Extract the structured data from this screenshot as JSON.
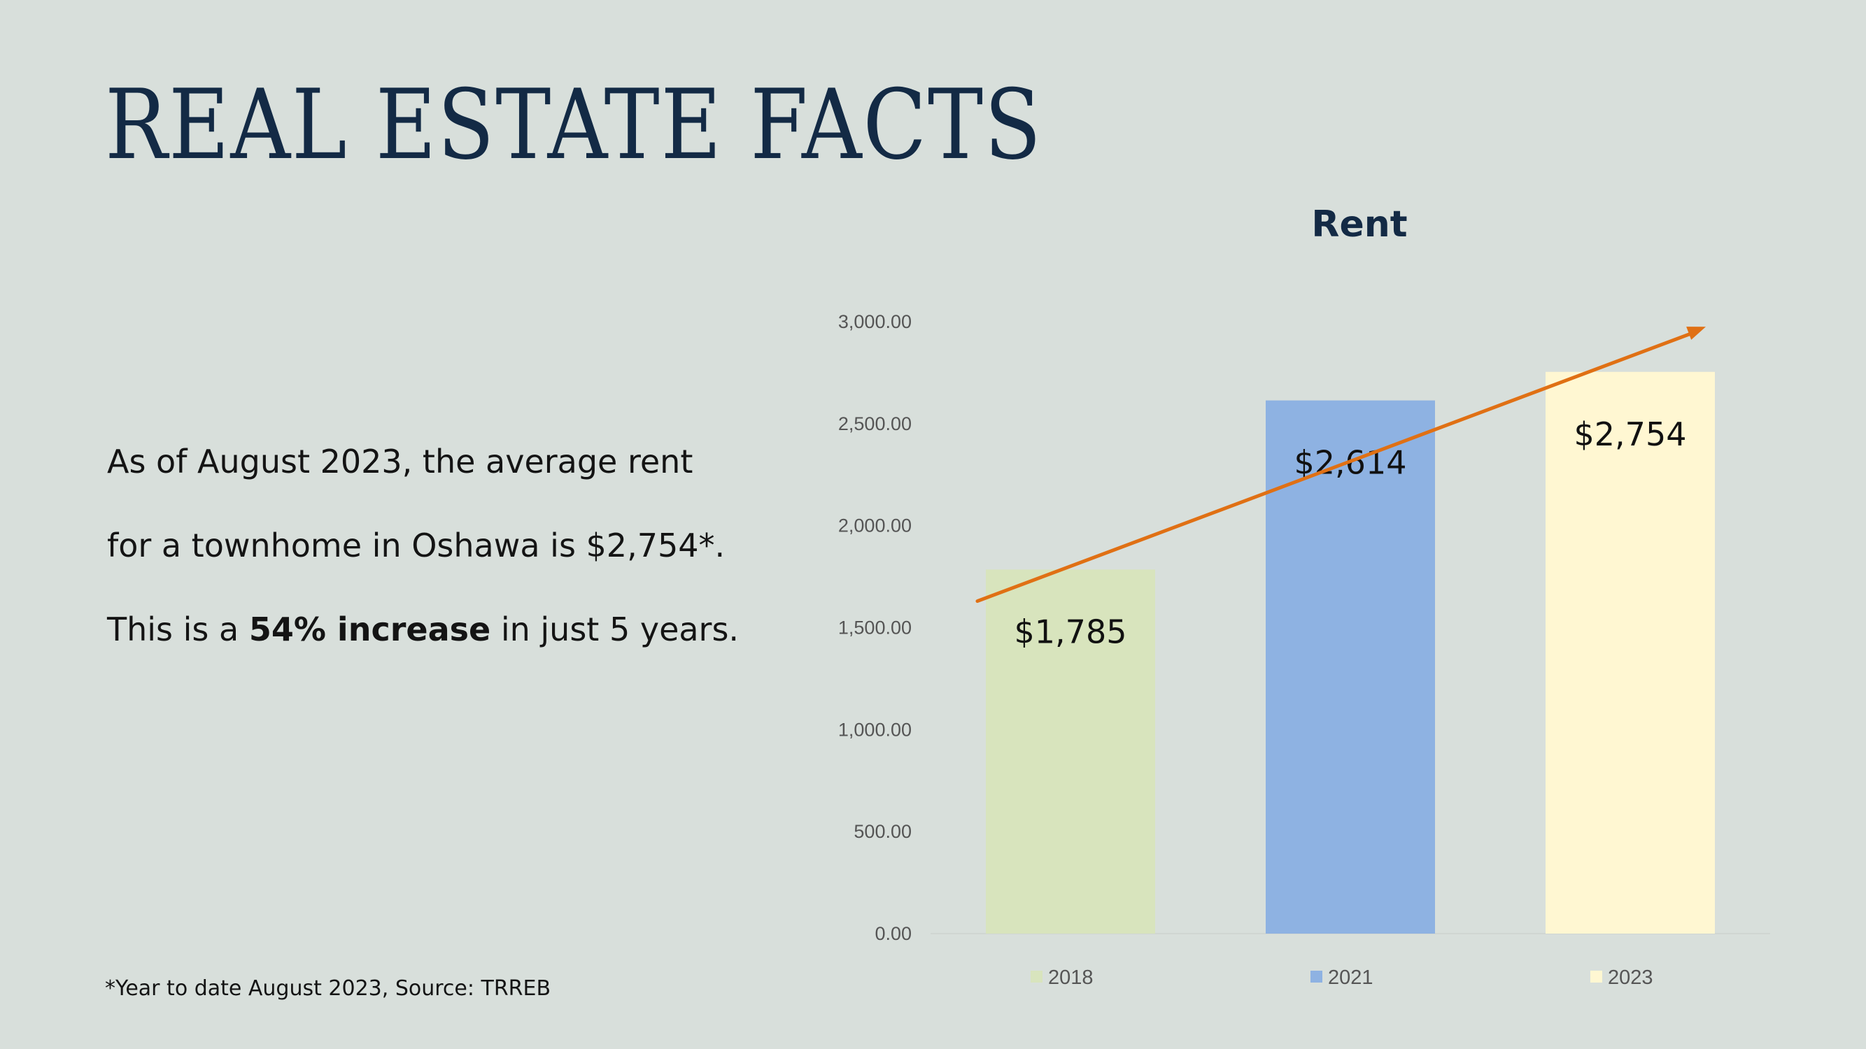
{
  "slide": {
    "title": "REAL ESTATE FACTS",
    "line1": "As of August 2023, the average rent",
    "line2": "for a townhome in Oshawa is $2,754*.",
    "line3_prefix": "This is a ",
    "line3_bold": "54% increase",
    "line3_suffix": " in just 5 years.",
    "footnote": "*Year to date August 2023, Source: TRREB"
  },
  "chart_data": {
    "type": "bar",
    "title": "Rent",
    "categories": [
      "2018",
      "2021",
      "2023"
    ],
    "values": [
      1785,
      2614,
      2754
    ],
    "data_labels": [
      "$1,785",
      "$2,614",
      "$2,754"
    ],
    "colors": [
      "#d8e4bd",
      "#8eb2e2",
      "#fff7d2"
    ],
    "ylim": [
      0,
      3000
    ],
    "yticks": [
      0,
      500,
      1000,
      1500,
      2000,
      2500,
      3000
    ],
    "ytick_labels": [
      "0.00",
      "500.00",
      "1,000.00",
      "1,500.00",
      "2,000.00",
      "2,500.00",
      "3,000.00"
    ],
    "grid": false,
    "legend": "bottom",
    "trend_arrow": {
      "color": "#e07014",
      "from_value": 1630,
      "to_value": 2975
    }
  }
}
